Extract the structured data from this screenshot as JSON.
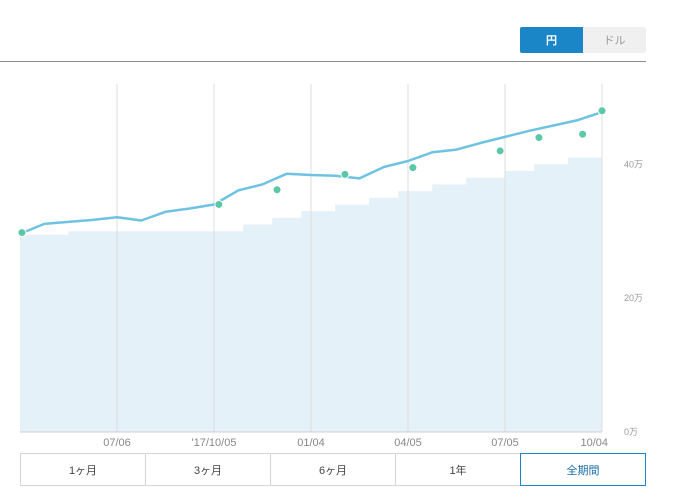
{
  "currency_toggle": {
    "options": [
      {
        "label": "円",
        "active": true
      },
      {
        "label": "ドル",
        "active": false
      }
    ]
  },
  "range_tabs": [
    {
      "label": "1ヶ月",
      "selected": false
    },
    {
      "label": "3ヶ月",
      "selected": false
    },
    {
      "label": "6ヶ月",
      "selected": false
    },
    {
      "label": "1年",
      "selected": false
    },
    {
      "label": "全期間",
      "selected": true
    }
  ],
  "colors": {
    "accent": "#1a86c8",
    "line": "#6ec3e3",
    "area": "#e5f1f9",
    "marker": "#5bc8a8",
    "grid": "#dddddd"
  },
  "chart_data": {
    "type": "line",
    "x_ticks": [
      "07/06",
      "'17/10/05",
      "01/04",
      "04/05",
      "07/05",
      "10/04"
    ],
    "y_ticks": [
      "0万",
      "20万",
      "40万"
    ],
    "ylim": [
      0,
      520000
    ],
    "series": [
      {
        "kind": "line",
        "x": [
          0,
          0.25,
          0.5,
          0.75,
          1,
          1.25,
          1.5,
          1.75,
          2,
          2.25,
          2.5,
          2.75,
          3,
          3.25,
          3.5,
          3.75,
          4,
          4.25,
          4.5,
          4.75,
          5,
          5.25,
          5.5,
          5.75,
          6
        ],
        "values": [
          296000,
          311000,
          314000,
          317000,
          321000,
          316000,
          329000,
          334000,
          340000,
          361000,
          370000,
          386000,
          384000,
          383000,
          379000,
          396000,
          405000,
          418000,
          422000,
          432000,
          441000,
          450000,
          458000,
          466000,
          478000
        ]
      },
      {
        "kind": "area-step",
        "x": [
          0,
          0.5,
          1,
          1.5,
          2,
          2.3,
          2.6,
          2.9,
          3.25,
          3.6,
          3.9,
          4.25,
          4.6,
          5,
          5.3,
          5.65,
          6
        ],
        "values": [
          295000,
          300000,
          300000,
          300000,
          300000,
          310000,
          320000,
          330000,
          340000,
          350000,
          360000,
          370000,
          380000,
          390000,
          400000,
          410000,
          410000
        ]
      },
      {
        "kind": "markers",
        "x": [
          0.02,
          2.05,
          2.65,
          3.35,
          4.05,
          4.95,
          5.35,
          5.8,
          6.0
        ],
        "values": [
          298000,
          340000,
          362000,
          385000,
          395000,
          420000,
          440000,
          445000,
          480000
        ]
      }
    ]
  }
}
